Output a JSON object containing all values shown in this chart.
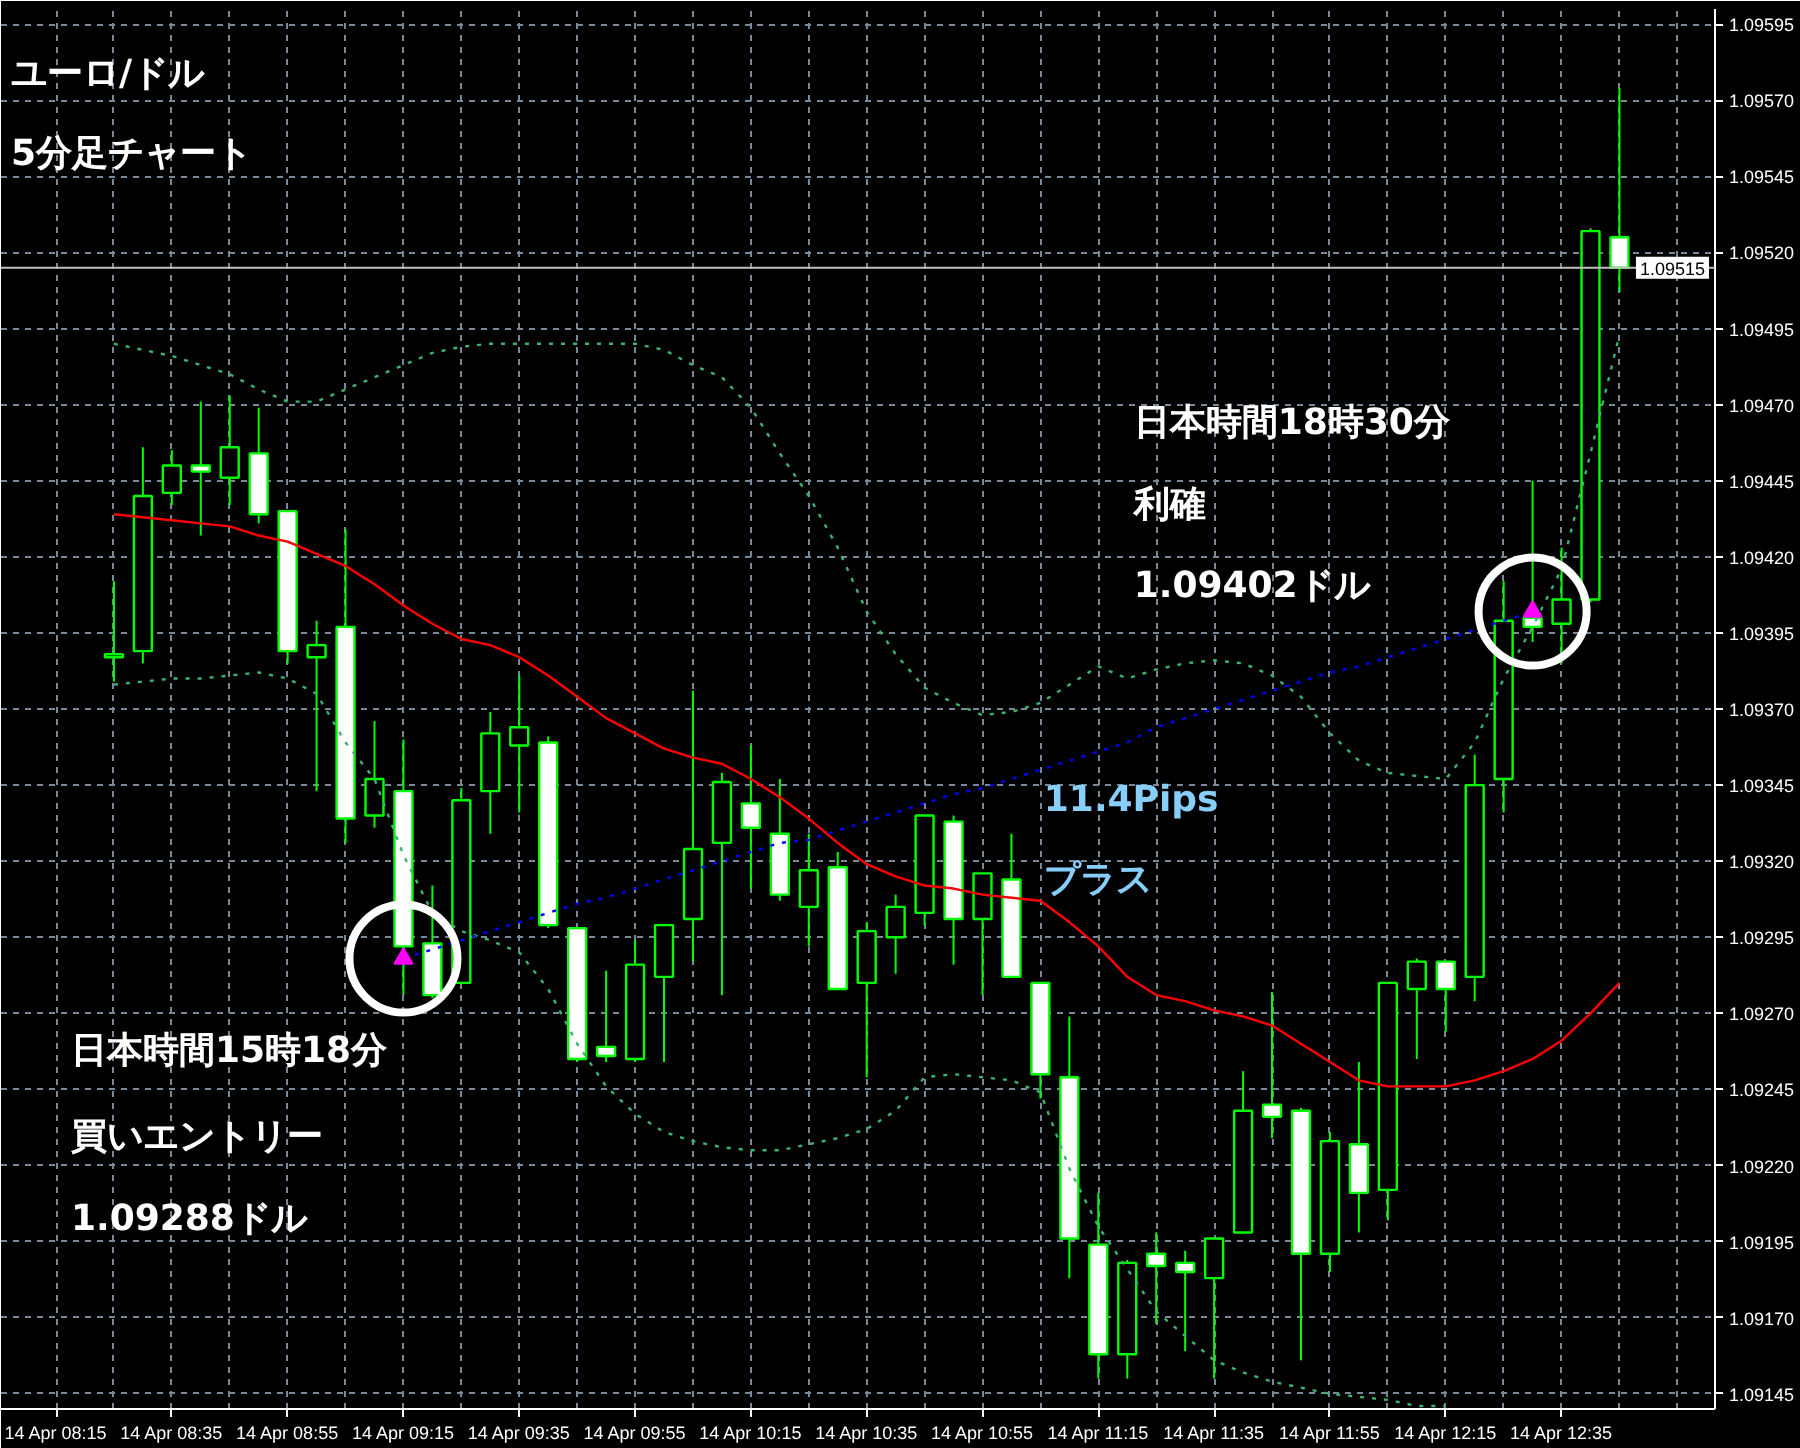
{
  "chart_data": {
    "type": "candlestick",
    "title": "ユーロ/ドル",
    "subtitle": "5分足チャート",
    "categories": [
      "14 Apr 08:15",
      null,
      null,
      null,
      "14 Apr 08:35",
      null,
      null,
      null,
      "14 Apr 08:55",
      null,
      null,
      null,
      "14 Apr 09:15",
      null,
      null,
      null,
      "14 Apr 09:35",
      null,
      null,
      null,
      "14 Apr 09:55",
      null,
      null,
      null,
      "14 Apr 10:15",
      null,
      null,
      null,
      "14 Apr 10:35",
      null,
      null,
      null,
      "14 Apr 10:55",
      null,
      null,
      null,
      "14 Apr 11:15",
      null,
      null,
      null,
      "14 Apr 11:35",
      null,
      null,
      null,
      "14 Apr 11:55",
      null,
      null,
      null,
      "14 Apr 12:15",
      null,
      null,
      null,
      "14 Apr 12:35",
      null,
      null
    ],
    "ohlc": [
      null,
      null,
      [
        1.09387,
        1.09412,
        1.09379,
        1.09388
      ],
      [
        1.09389,
        1.09456,
        1.09385,
        1.0944
      ],
      [
        1.09441,
        1.09455,
        1.09437,
        1.0945
      ],
      [
        1.0945,
        1.09471,
        1.09427,
        1.09448
      ],
      [
        1.09446,
        1.09473,
        1.09437,
        1.09456
      ],
      [
        1.09454,
        1.09469,
        1.09431,
        1.09434
      ],
      [
        1.09435,
        1.09435,
        1.09385,
        1.09389
      ],
      [
        1.09387,
        1.09399,
        1.09343,
        1.09391
      ],
      [
        1.09397,
        1.09429,
        1.09326,
        1.09334
      ],
      [
        1.09335,
        1.09366,
        1.09331,
        1.09347
      ],
      [
        1.09343,
        1.0936,
        1.09276,
        1.09292
      ],
      [
        1.09293,
        1.09312,
        1.09275,
        1.09276
      ],
      [
        1.0928,
        1.09344,
        1.0928,
        1.0934
      ],
      [
        1.09343,
        1.09369,
        1.09329,
        1.09362
      ],
      [
        1.09358,
        1.09381,
        1.09336,
        1.09364
      ],
      [
        1.09359,
        1.09361,
        1.09298,
        1.09299
      ],
      [
        1.09298,
        1.09298,
        1.09254,
        1.09255
      ],
      [
        1.09259,
        1.09284,
        1.09254,
        1.09256
      ],
      [
        1.09255,
        1.09294,
        1.09254,
        1.09286
      ],
      [
        1.09282,
        1.09299,
        1.09254,
        1.09299
      ],
      [
        1.09301,
        1.09376,
        1.09287,
        1.09324
      ],
      [
        1.09326,
        1.09349,
        1.09276,
        1.09346
      ],
      [
        1.09339,
        1.09358,
        1.09311,
        1.09331
      ],
      [
        1.09329,
        1.09347,
        1.09307,
        1.09309
      ],
      [
        1.09305,
        1.09329,
        1.09292,
        1.09317
      ],
      [
        1.09318,
        1.09323,
        1.09278,
        1.09278
      ],
      [
        1.0928,
        1.093,
        1.09249,
        1.09297
      ],
      [
        1.09295,
        1.09309,
        1.09283,
        1.09305
      ],
      [
        1.09303,
        1.09335,
        1.09299,
        1.09335
      ],
      [
        1.09333,
        1.09335,
        1.09286,
        1.09301
      ],
      [
        1.09301,
        1.09316,
        1.09276,
        1.09316
      ],
      [
        1.09314,
        1.09329,
        1.09282,
        1.09282
      ],
      [
        1.0928,
        1.0928,
        1.09242,
        1.0925
      ],
      [
        1.09249,
        1.09269,
        1.09183,
        1.09196
      ],
      [
        1.09194,
        1.09211,
        1.0915,
        1.09158
      ],
      [
        1.09158,
        1.09189,
        1.0915,
        1.09188
      ],
      [
        1.09191,
        1.09198,
        1.09168,
        1.09187
      ],
      [
        1.09188,
        1.09192,
        1.09159,
        1.09185
      ],
      [
        1.09183,
        1.09196,
        1.0915,
        1.09196
      ],
      [
        1.09198,
        1.09251,
        1.09198,
        1.09238
      ],
      [
        1.0924,
        1.09277,
        1.09229,
        1.09236
      ],
      [
        1.09238,
        1.09239,
        1.09156,
        1.09191
      ],
      [
        1.09191,
        1.09231,
        1.09185,
        1.09228
      ],
      [
        1.09227,
        1.09254,
        1.09198,
        1.09211
      ],
      [
        1.09212,
        1.0928,
        1.09202,
        1.0928
      ],
      [
        1.09278,
        1.09288,
        1.09255,
        1.09287
      ],
      [
        1.09287,
        1.09287,
        1.09264,
        1.09278
      ],
      [
        1.09282,
        1.09355,
        1.09274,
        1.09345
      ],
      [
        1.09347,
        1.09412,
        1.09336,
        1.09399
      ],
      [
        1.094,
        1.09445,
        1.09392,
        1.09397
      ],
      [
        1.09398,
        1.09423,
        1.09385,
        1.09406
      ],
      [
        1.09406,
        1.09528,
        1.09405,
        1.09527
      ],
      [
        1.09525,
        1.09574,
        1.09507,
        1.09515
      ]
    ],
    "color": "#00ff00",
    "colors": [
      null,
      null,
      "#000000",
      "#000000",
      "#000000",
      "#ffffff",
      "#000000",
      "#ffffff",
      "#ffffff",
      "#000000",
      "#ffffff",
      "#000000",
      "#ffffff",
      "#ffffff",
      "#000000",
      "#000000",
      "#000000",
      "#ffffff",
      "#ffffff",
      "#ffffff",
      "#000000",
      "#000000",
      "#000000",
      "#000000",
      "#ffffff",
      "#ffffff",
      "#000000",
      "#ffffff",
      "#000000",
      "#000000",
      "#000000",
      "#ffffff",
      "#000000",
      "#ffffff",
      "#ffffff",
      "#ffffff",
      "#ffffff",
      "#000000",
      "#ffffff",
      "#ffffff",
      "#000000",
      "#000000",
      "#ffffff",
      "#ffffff",
      "#000000",
      "#ffffff",
      "#000000",
      "#000000",
      "#ffffff",
      "#000000",
      "#000000",
      "#ffffff",
      "#000000",
      "#000000",
      "#ffffff"
    ],
    "series": [
      {
        "type": "line",
        "color": "#ff0000",
        "line_style": "solid",
        "values": [
          null,
          null,
          1.09434,
          1.09433,
          1.09432,
          1.09431,
          1.0943,
          1.09427,
          1.09425,
          1.09421,
          1.09417,
          1.09411,
          1.09404,
          1.09398,
          1.09393,
          1.09391,
          1.09387,
          1.09381,
          1.09374,
          1.09367,
          1.09362,
          1.09357,
          1.09354,
          1.09352,
          1.09347,
          1.09341,
          1.09334,
          1.09326,
          1.09319,
          1.09315,
          1.09312,
          1.09311,
          1.09309,
          1.09308,
          1.09307,
          1.093,
          1.09292,
          1.09282,
          1.09276,
          1.09274,
          1.09271,
          1.09269,
          1.09266,
          1.0926,
          1.09254,
          1.09248,
          1.09246,
          1.09246,
          1.09246,
          1.09248,
          1.09251,
          1.09255,
          1.09261,
          1.0927,
          1.0928
        ]
      },
      {
        "type": "line",
        "color": "#3cb371",
        "line_style": "dotted",
        "values": [
          null,
          null,
          1.0949,
          1.09488,
          1.09486,
          1.09483,
          1.0948,
          1.09475,
          1.09471,
          1.09471,
          1.09475,
          1.09479,
          1.09483,
          1.09487,
          1.09489,
          1.0949,
          1.0949,
          1.0949,
          1.0949,
          1.0949,
          1.0949,
          1.09488,
          1.09483,
          1.09479,
          1.09469,
          1.09454,
          1.0944,
          1.09423,
          1.09402,
          1.09388,
          1.09377,
          1.09372,
          1.09368,
          1.09369,
          1.09372,
          1.09378,
          1.09384,
          1.0938,
          1.09383,
          1.09385,
          1.09386,
          1.09385,
          1.09381,
          1.09374,
          1.09362,
          1.09353,
          1.09349,
          1.09348,
          1.09347,
          1.09359,
          1.0938,
          1.09397,
          1.09416,
          1.09454,
          1.09493
        ]
      },
      {
        "type": "line",
        "color": "#3cb371",
        "line_style": "dotted",
        "values": [
          null,
          null,
          1.09378,
          1.09379,
          1.0938,
          1.0938,
          1.09381,
          1.09382,
          1.0938,
          1.09375,
          1.09359,
          1.09347,
          1.09322,
          1.09303,
          1.09297,
          1.09294,
          1.0929,
          1.09278,
          1.0926,
          1.09246,
          1.09237,
          1.09231,
          1.09228,
          1.09226,
          1.09225,
          1.09225,
          1.09227,
          1.09229,
          1.09232,
          1.09238,
          1.09249,
          1.0925,
          1.09249,
          1.09248,
          1.09244,
          1.09219,
          1.092,
          1.09186,
          1.09172,
          1.09164,
          1.09156,
          1.09152,
          1.09149,
          1.09147,
          1.09145,
          1.09144,
          1.09143,
          1.09141,
          1.09141,
          null,
          null,
          null,
          null,
          null,
          null
        ]
      },
      {
        "type": "line",
        "color": "#0000ff",
        "line_style": "dotted",
        "values": [
          null,
          null,
          null,
          null,
          null,
          null,
          null,
          null,
          null,
          null,
          null,
          null,
          1.09288,
          1.09291,
          1.09294,
          1.09297,
          1.093,
          1.09303,
          1.09306,
          1.09308,
          1.09311,
          1.09314,
          1.09317,
          1.0932,
          1.09323,
          1.09326,
          1.09327,
          1.0933,
          1.09333,
          1.09336,
          1.09339,
          1.09342,
          1.09344,
          1.09347,
          1.0935,
          1.09353,
          1.09356,
          1.09359,
          1.09364,
          1.09367,
          1.0937,
          1.09373,
          1.09376,
          1.09379,
          1.09382,
          1.09384,
          1.09387,
          1.0939,
          1.09393,
          1.09396,
          1.09399,
          1.09402,
          null,
          null,
          null
        ]
      },
      {
        "type": "scatter",
        "color": "#ff00ff",
        "marker": "triangle",
        "values": [
          null,
          null,
          null,
          null,
          null,
          null,
          null,
          null,
          null,
          null,
          null,
          null,
          1.09288,
          null,
          null,
          null,
          null,
          null,
          null,
          null,
          null,
          null,
          null,
          null,
          null,
          null,
          null,
          null,
          null,
          null,
          null,
          null,
          null,
          null,
          null,
          null,
          null,
          null,
          null,
          null,
          null,
          null,
          null,
          null,
          null,
          null,
          null,
          null,
          null,
          null,
          null,
          1.09402,
          null,
          null,
          null
        ]
      },
      {
        "type": "scatter",
        "color": "#ffffff",
        "marker": "circle",
        "values": [
          null,
          null,
          null,
          null,
          null,
          null,
          null,
          null,
          null,
          null,
          null,
          null,
          1.09288,
          null,
          null,
          null,
          null,
          null,
          null,
          null,
          null,
          null,
          null,
          null,
          null,
          null,
          null,
          null,
          null,
          null,
          null,
          null,
          null,
          null,
          null,
          null,
          null,
          null,
          null,
          null,
          null,
          null,
          null,
          null,
          null,
          null,
          null,
          null,
          null,
          null,
          null,
          1.09402,
          null,
          null,
          null
        ]
      }
    ],
    "ylim": [
      1.0914,
      1.096
    ],
    "yticks": [
      1.09595,
      {
        "value": 1.0957,
        "label": "1.09570"
      },
      1.09545,
      {
        "value": 1.0952,
        "label": "1.09520"
      },
      1.09495,
      {
        "value": 1.0947,
        "label": "1.09470"
      },
      1.09445,
      {
        "value": 1.0942,
        "label": "1.09420"
      },
      1.09395,
      {
        "value": 1.0937,
        "label": "1.09370"
      },
      1.09345,
      {
        "value": 1.0932,
        "label": "1.09320"
      },
      1.09295,
      {
        "value": 1.0927,
        "label": "1.09270"
      },
      1.09245,
      {
        "value": 1.0922,
        "label": "1.09220"
      },
      1.09195,
      {
        "value": 1.0917,
        "label": "1.09170"
      },
      1.09145
    ],
    "grid": true,
    "ref_lines": [
      {
        "axis": "y",
        "value": 1.09515,
        "label": "1.09515",
        "color": "#c0c0c0"
      }
    ],
    "annotations": [
      "日本時間15時18分",
      "買いエントリー",
      "1.09288ドル",
      "11.4Pips",
      "プラス",
      "日本時間18時30分",
      "利確",
      "1.09402ドル"
    ]
  }
}
